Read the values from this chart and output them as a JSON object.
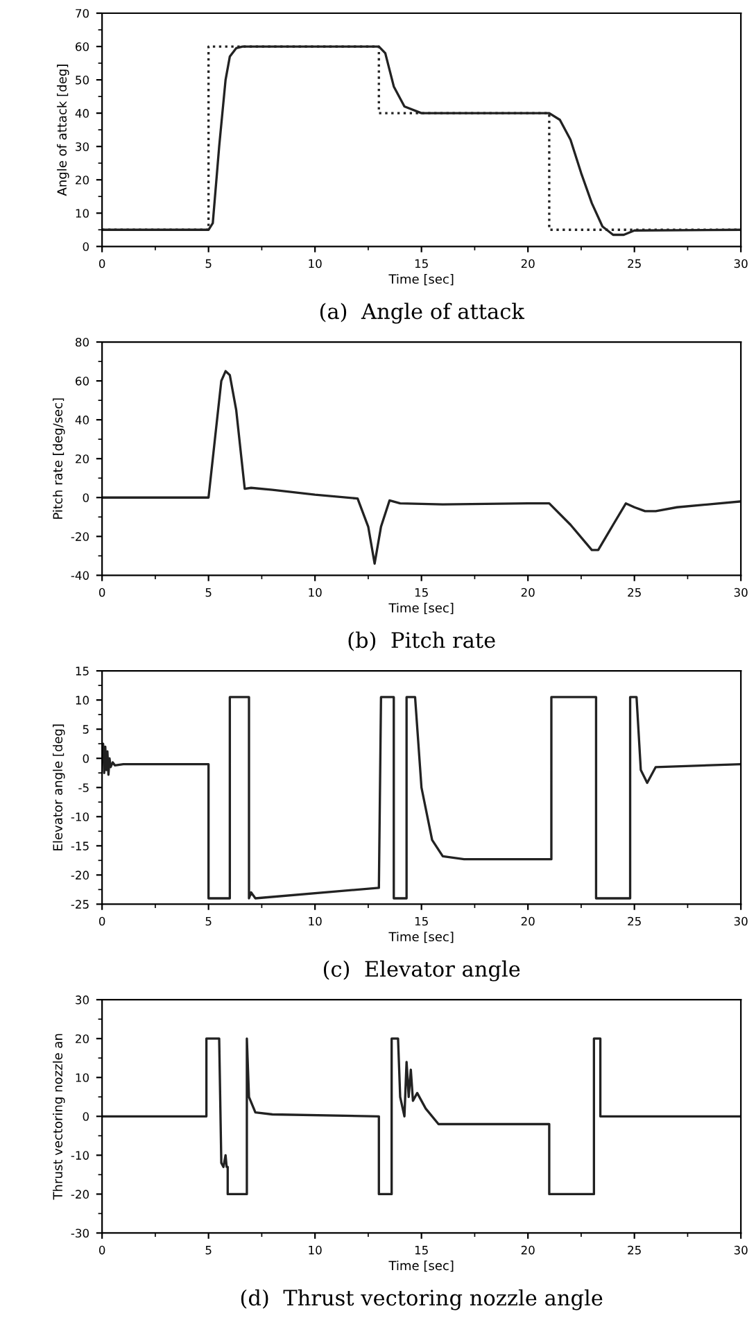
{
  "chart_data": [
    {
      "type": "line",
      "title": "(a)  Angle of attack",
      "xlabel": "Time [sec]",
      "ylabel": "Angle of attack [deg]",
      "xlim": [
        0,
        30
      ],
      "xticks": [
        0,
        5,
        10,
        15,
        20,
        25,
        30
      ],
      "ylim": [
        0,
        70
      ],
      "yticks": [
        0,
        10,
        20,
        30,
        40,
        50,
        60,
        70
      ],
      "grid": false,
      "legend": false,
      "series": [
        {
          "color": "#222222",
          "line_style": "dotted",
          "x": [
            0,
            5,
            5,
            13,
            13,
            21,
            21,
            30
          ],
          "values": [
            5,
            5,
            60,
            60,
            40,
            40,
            5,
            5
          ]
        },
        {
          "color": "#222222",
          "line_style": "solid",
          "x": [
            0,
            5,
            5.2,
            5.5,
            5.8,
            6,
            6.3,
            6.6,
            13,
            13.3,
            13.7,
            14.2,
            15,
            21,
            21.5,
            22,
            22.5,
            23,
            23.5,
            24,
            24.5,
            25,
            30
          ],
          "values": [
            5,
            5,
            7,
            30,
            50,
            57,
            59.5,
            60,
            60,
            58,
            48,
            42,
            40,
            40,
            38,
            32,
            22,
            13,
            6,
            3.5,
            3.5,
            4.8,
            5
          ]
        }
      ]
    },
    {
      "type": "line",
      "title": "(b)  Pitch rate",
      "xlabel": "Time [sec]",
      "ylabel": "Pitch rate [deg/sec]",
      "xlim": [
        0,
        30
      ],
      "xticks": [
        0,
        5,
        10,
        15,
        20,
        25,
        30
      ],
      "ylim": [
        -40,
        80
      ],
      "yticks": [
        -40,
        -20,
        0,
        20,
        40,
        60,
        80
      ],
      "grid": false,
      "legend": false,
      "series": [
        {
          "color": "#222222",
          "line_style": "solid",
          "x": [
            0,
            5,
            5.3,
            5.6,
            5.8,
            6,
            6.3,
            6.7,
            7,
            8,
            10,
            12,
            12.5,
            12.8,
            13.1,
            13.5,
            14,
            16,
            20,
            21,
            22,
            23,
            23.3,
            24,
            24.6,
            25,
            25.5,
            26,
            27,
            30
          ],
          "values": [
            0,
            0,
            30,
            60,
            65,
            63,
            45,
            4.5,
            5,
            4,
            1.5,
            -0.5,
            -15,
            -34,
            -15,
            -1.5,
            -3,
            -3.5,
            -3,
            -3,
            -14,
            -27,
            -27,
            -14,
            -3,
            -5,
            -7,
            -7,
            -5,
            -2
          ]
        }
      ]
    },
    {
      "type": "line",
      "title": "(c)  Elevator angle",
      "xlabel": "Time [sec]",
      "ylabel": "Elevator angle [deg]",
      "xlim": [
        0,
        30
      ],
      "xticks": [
        0,
        5,
        10,
        15,
        20,
        25,
        30
      ],
      "ylim": [
        -25,
        15
      ],
      "yticks": [
        -25,
        -20,
        -15,
        -10,
        -5,
        0,
        5,
        10,
        15
      ],
      "grid": false,
      "legend": false,
      "series": [
        {
          "color": "#222222",
          "line_style": "solid",
          "x": [
            0,
            0.05,
            0.1,
            0.15,
            0.2,
            0.25,
            0.3,
            0.35,
            0.4,
            0.5,
            0.6,
            1,
            5,
            5,
            6,
            6,
            6.9,
            6.9,
            7,
            7.2,
            13,
            13.1,
            13.7,
            13.7,
            14.3,
            14.3,
            14.7,
            15,
            15.5,
            16,
            17,
            21.1,
            21.1,
            23.2,
            23.2,
            24.8,
            24.8,
            25.1,
            25.3,
            25.6,
            26,
            30
          ],
          "values": [
            0,
            2.5,
            -2.5,
            2,
            -2,
            1.2,
            -2.8,
            0,
            -1.5,
            -0.7,
            -1.2,
            -1,
            -1,
            -24,
            -24,
            10.5,
            10.5,
            -24,
            -23,
            -24,
            -22.2,
            10.5,
            10.5,
            -24,
            -24,
            10.5,
            10.5,
            -5,
            -14,
            -16.8,
            -17.3,
            -17.3,
            10.5,
            10.5,
            -24,
            -24,
            10.5,
            10.5,
            -2,
            -4.2,
            -1.5,
            -1
          ]
        }
      ]
    },
    {
      "type": "line",
      "title": "(d)  Thrust vectoring nozzle angle",
      "xlabel": "Time [sec]",
      "ylabel": "Thrust vectoring nozzle an",
      "xlim": [
        0,
        30
      ],
      "xticks": [
        0,
        5,
        10,
        15,
        20,
        25,
        30
      ],
      "ylim": [
        -30,
        30
      ],
      "yticks": [
        -30,
        -20,
        -10,
        0,
        10,
        20,
        30
      ],
      "grid": false,
      "legend": false,
      "series": [
        {
          "color": "#222222",
          "line_style": "solid",
          "x": [
            0,
            4.9,
            4.9,
            5.5,
            5.6,
            5.7,
            5.8,
            5.85,
            5.9,
            5.9,
            6.8,
            6.8,
            6.9,
            7.2,
            8,
            13,
            13,
            13.6,
            13.6,
            13.9,
            14,
            14.2,
            14.3,
            14.4,
            14.5,
            14.6,
            14.8,
            15.2,
            15.8,
            21,
            21,
            23.1,
            23.1,
            23.4,
            23.4,
            30
          ],
          "values": [
            0,
            0,
            20,
            20,
            -12,
            -13,
            -10,
            -13,
            -13,
            -20,
            -20,
            20,
            5,
            1,
            0.5,
            0,
            -20,
            -20,
            20,
            20,
            5,
            0,
            14,
            5,
            12,
            4,
            6,
            2,
            -2,
            -2,
            -20,
            -20,
            20,
            20,
            0,
            0
          ]
        }
      ]
    }
  ]
}
